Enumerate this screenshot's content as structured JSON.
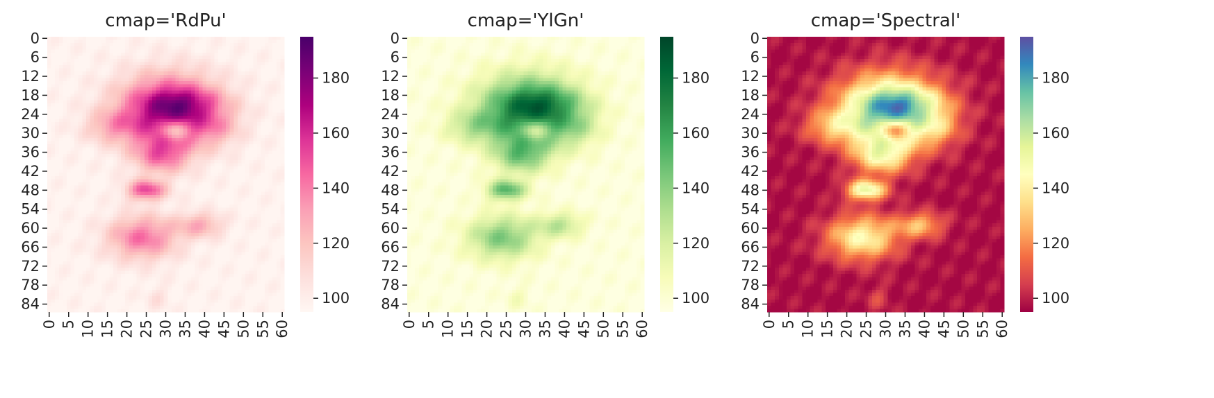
{
  "chart_data": [
    {
      "type": "heatmap",
      "title": "cmap='RdPu'",
      "xlabel": "",
      "ylabel": "",
      "x_tick_labels": [
        "0",
        "5",
        "10",
        "15",
        "20",
        "25",
        "30",
        "35",
        "40",
        "45",
        "50",
        "55",
        "60"
      ],
      "y_tick_labels": [
        "0",
        "6",
        "12",
        "18",
        "24",
        "30",
        "36",
        "42",
        "48",
        "54",
        "60",
        "66",
        "72",
        "78",
        "84"
      ],
      "x_range": [
        0,
        61
      ],
      "y_range": [
        0,
        87
      ],
      "colorbar": {
        "ticks": [
          "100",
          "120",
          "140",
          "160",
          "180"
        ],
        "range": [
          95,
          195
        ],
        "colors": [
          "#fff7f3",
          "#fde0dd",
          "#fcc5c0",
          "#fa9fb5",
          "#f768a1",
          "#dd3497",
          "#ae017e",
          "#7a0177",
          "#49006a"
        ]
      }
    },
    {
      "type": "heatmap",
      "title": "cmap='YlGn'",
      "xlabel": "",
      "ylabel": "",
      "x_tick_labels": [
        "0",
        "5",
        "10",
        "15",
        "20",
        "25",
        "30",
        "35",
        "40",
        "45",
        "50",
        "55",
        "60"
      ],
      "y_tick_labels": [
        "0",
        "6",
        "12",
        "18",
        "24",
        "30",
        "36",
        "42",
        "48",
        "54",
        "60",
        "66",
        "72",
        "78",
        "84"
      ],
      "x_range": [
        0,
        61
      ],
      "y_range": [
        0,
        87
      ],
      "colorbar": {
        "ticks": [
          "100",
          "120",
          "140",
          "160",
          "180"
        ],
        "range": [
          95,
          195
        ],
        "colors": [
          "#ffffe5",
          "#f7fcb9",
          "#d9f0a3",
          "#addd8e",
          "#78c679",
          "#41ab5d",
          "#238443",
          "#006837",
          "#004529"
        ]
      }
    },
    {
      "type": "heatmap",
      "title": "cmap='Spectral'",
      "xlabel": "",
      "ylabel": "",
      "x_tick_labels": [
        "0",
        "5",
        "10",
        "15",
        "20",
        "25",
        "30",
        "35",
        "40",
        "45",
        "50",
        "55",
        "60"
      ],
      "y_tick_labels": [
        "0",
        "6",
        "12",
        "18",
        "24",
        "30",
        "36",
        "42",
        "48",
        "54",
        "60",
        "66",
        "72",
        "78",
        "84"
      ],
      "x_range": [
        0,
        61
      ],
      "y_range": [
        0,
        87
      ],
      "colorbar": {
        "ticks": [
          "100",
          "120",
          "140",
          "160",
          "180"
        ],
        "range": [
          95,
          195
        ],
        "colors": [
          "#9e0142",
          "#d53e4f",
          "#f46d43",
          "#fdae61",
          "#fee08b",
          "#ffffbf",
          "#e6f598",
          "#abdda4",
          "#66c2a5",
          "#3288bd",
          "#5e4fa2"
        ]
      }
    }
  ]
}
